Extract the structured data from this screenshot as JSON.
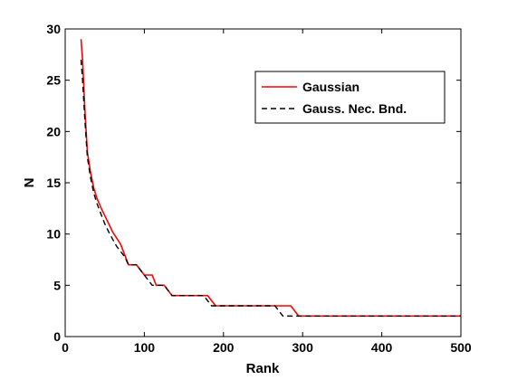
{
  "chart_data": {
    "type": "line",
    "title": "",
    "xlabel": "Rank",
    "ylabel": "N",
    "xlim": [
      0,
      500
    ],
    "ylim": [
      0,
      30
    ],
    "xticks": [
      "0",
      "100",
      "200",
      "300",
      "400",
      "500"
    ],
    "yticks": [
      "0",
      "5",
      "10",
      "15",
      "20",
      "25",
      "30"
    ],
    "grid": false,
    "legend_position": "top-right",
    "series": [
      {
        "name": "Gaussian",
        "color": "#ff0000",
        "dash": "solid",
        "x": [
          20,
          22,
          25,
          28,
          32,
          36,
          40,
          45,
          50,
          55,
          60,
          65,
          70,
          75,
          80,
          90,
          100,
          110,
          115,
          125,
          135,
          180,
          190,
          200,
          285,
          295,
          300,
          500
        ],
        "y": [
          29,
          27,
          22,
          18,
          16,
          14.5,
          13.5,
          12.6,
          11.8,
          11,
          10.2,
          9.6,
          9,
          8,
          7,
          7,
          6,
          6,
          5,
          5,
          4,
          4,
          3,
          3,
          3,
          2,
          2,
          2
        ]
      },
      {
        "name": "Gauss. Nec. Bnd.",
        "color": "#000000",
        "dash": "dashed",
        "x": [
          20,
          22,
          25,
          28,
          32,
          36,
          40,
          45,
          50,
          55,
          60,
          65,
          70,
          75,
          80,
          90,
          100,
          110,
          125,
          130,
          135,
          175,
          185,
          200,
          265,
          275,
          300,
          500
        ],
        "y": [
          27,
          25,
          21,
          17.5,
          15.5,
          14,
          13,
          12,
          11,
          10.2,
          9.5,
          8.8,
          8.3,
          7.8,
          7,
          7,
          6,
          5,
          5,
          4.5,
          4,
          4,
          3,
          3,
          3,
          2,
          2,
          2
        ]
      }
    ]
  }
}
